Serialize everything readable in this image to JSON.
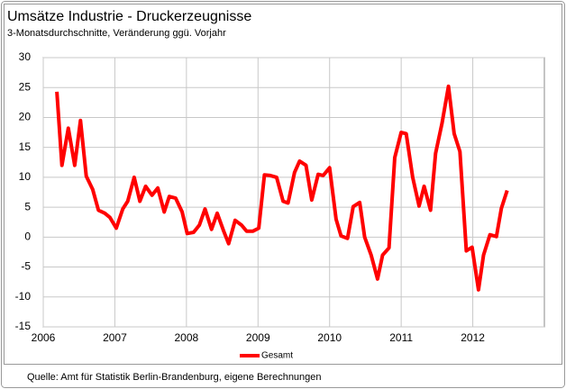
{
  "chart_data": {
    "type": "line",
    "title": "Umsätze Industrie - Druckerzeugnisse",
    "subtitle": "3-Monatsdurchschnitte,  Veränderung ggü. Vorjahr",
    "source": "Quelle: Amt für Statistik Berlin-Brandenburg,  eigene Berechnungen",
    "x": [
      2006.19,
      2006.26,
      2006.35,
      2006.44,
      2006.52,
      2006.6,
      2006.69,
      2006.77,
      2006.86,
      2006.93,
      2007.02,
      2007.11,
      2007.18,
      2007.27,
      2007.35,
      2007.43,
      2007.52,
      2007.6,
      2007.69,
      2007.76,
      2007.85,
      2007.94,
      2008.01,
      2008.1,
      2008.18,
      2008.26,
      2008.35,
      2008.43,
      2008.52,
      2008.59,
      2008.68,
      2008.77,
      2008.84,
      2008.93,
      2009.01,
      2009.09,
      2009.17,
      2009.26,
      2009.35,
      2009.42,
      2009.51,
      2009.58,
      2009.67,
      2009.75,
      2009.84,
      2009.91,
      2010.0,
      2010.09,
      2010.16,
      2010.25,
      2010.33,
      2010.42,
      2010.49,
      2010.58,
      2010.67,
      2010.74,
      2010.83,
      2010.91,
      2011.0,
      2011.07,
      2011.16,
      2011.25,
      2011.32,
      2011.41,
      2011.48,
      2011.57,
      2011.66,
      2011.74,
      2011.82,
      2011.91,
      2011.99,
      2012.08,
      2012.15,
      2012.24,
      2012.33,
      2012.4,
      2012.48
    ],
    "series": [
      {
        "name": "Gesamt",
        "color": "#ff0000",
        "values": [
          24.3,
          12,
          18.2,
          12,
          19.5,
          10.2,
          8,
          4.5,
          4,
          3.3,
          1.5,
          4.7,
          6,
          10,
          6,
          8.5,
          7,
          8.2,
          4.2,
          6.8,
          6.5,
          4.2,
          0.6,
          0.8,
          2,
          4.7,
          1.3,
          4,
          1,
          -1.1,
          2.8,
          2,
          1,
          1,
          1.5,
          10.4,
          10.3,
          10,
          6,
          5.7,
          10.8,
          12.7,
          12,
          6.2,
          10.5,
          10.3,
          11.6,
          3,
          0.2,
          -0.2,
          5.1,
          5.8,
          0,
          -3,
          -7,
          -3,
          -1.8,
          13.3,
          17.5,
          17.3,
          10,
          5.2,
          8.5,
          4.5,
          14,
          19,
          25.2,
          17.3,
          14.3,
          -2.3,
          -1.7,
          -8.8,
          -3,
          0.4,
          0.1,
          4.8,
          7.8
        ]
      }
    ],
    "xlim": [
      2006,
      2013
    ],
    "xticks": [
      2006,
      2007,
      2008,
      2009,
      2010,
      2011,
      2012
    ],
    "ylim": [
      -15,
      30
    ],
    "yticks": [
      -15,
      -10,
      -5,
      0,
      5,
      10,
      15,
      20,
      25,
      30
    ],
    "grid": true,
    "legend": "bottom"
  }
}
